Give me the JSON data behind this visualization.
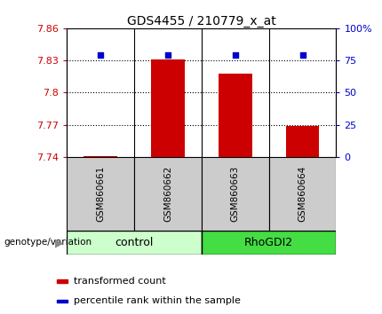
{
  "title": "GDS4455 / 210779_x_at",
  "samples": [
    "GSM860661",
    "GSM860662",
    "GSM860663",
    "GSM860664"
  ],
  "bar_values": [
    7.741,
    7.831,
    7.818,
    7.769
  ],
  "percentile_values": [
    79.5,
    79.5,
    79.5,
    79.5
  ],
  "bar_color": "#cc0000",
  "percentile_color": "#0000cc",
  "ylim_left": [
    7.74,
    7.86
  ],
  "ylim_right": [
    0,
    100
  ],
  "yticks_left": [
    7.74,
    7.77,
    7.8,
    7.83,
    7.86
  ],
  "yticks_right": [
    0,
    25,
    50,
    75,
    100
  ],
  "ytick_labels_left": [
    "7.74",
    "7.77",
    "7.8",
    "7.83",
    "7.86"
  ],
  "ytick_labels_right": [
    "0",
    "25",
    "50",
    "75",
    "100%"
  ],
  "groups": [
    {
      "label": "control",
      "samples": [
        0,
        1
      ],
      "color": "#ccffcc"
    },
    {
      "label": "RhoGDI2",
      "samples": [
        2,
        3
      ],
      "color": "#44dd44"
    }
  ],
  "group_row_label": "genotype/variation",
  "legend_items": [
    {
      "label": "transformed count",
      "color": "#cc0000"
    },
    {
      "label": "percentile rank within the sample",
      "color": "#0000cc"
    }
  ],
  "bar_width": 0.5,
  "sample_box_color": "#cccccc",
  "background_color": "#ffffff"
}
